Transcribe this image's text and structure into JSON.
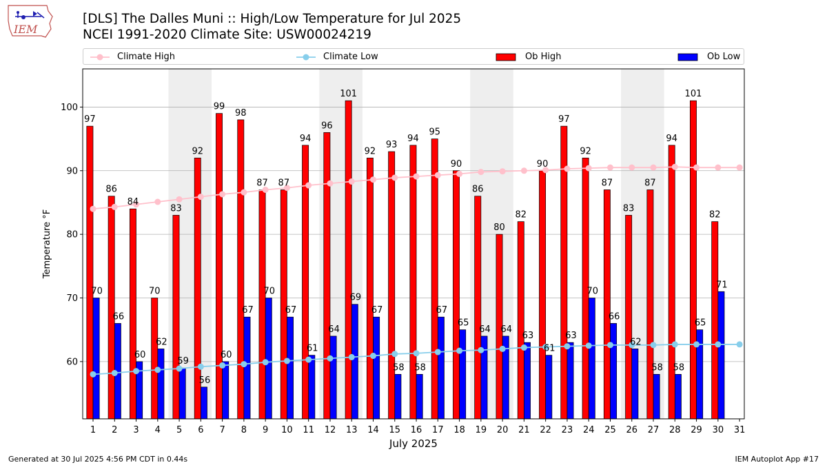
{
  "title_line1": "[DLS] The Dalles Muni :: High/Low Temperature for Jul 2025",
  "title_line2": "NCEI 1991-2020 Climate Site: USW00024219",
  "footer_left": "Generated at 30 Jul 2025 4:56 PM CDT in 0.44s",
  "footer_right": "IEM Autoplot App #17",
  "logo_text": "IEM",
  "colors": {
    "ob_high": "#ff0000",
    "ob_low": "#0000ff",
    "climate_high": "#ffc0cb",
    "climate_low": "#87ceeb",
    "weekend_shade": "#eeeeee",
    "grid": "#b0b0b0"
  },
  "chart_data": {
    "type": "bar",
    "xlabel": "July 2025",
    "ylabel": "Temperature °F",
    "ylim": [
      51,
      106
    ],
    "yticks": [
      60,
      70,
      80,
      90,
      100
    ],
    "grid": "horizontal",
    "legend_placement": "top",
    "categories": [
      "1",
      "2",
      "3",
      "4",
      "5",
      "6",
      "7",
      "8",
      "9",
      "10",
      "11",
      "12",
      "13",
      "14",
      "15",
      "16",
      "17",
      "18",
      "19",
      "20",
      "21",
      "22",
      "23",
      "24",
      "25",
      "26",
      "27",
      "28",
      "29",
      "30",
      "31"
    ],
    "weekend_shaded_days": [
      [
        5,
        6
      ],
      [
        12,
        13
      ],
      [
        19,
        20
      ],
      [
        26,
        27
      ]
    ],
    "series": [
      {
        "name": "Climate High",
        "kind": "line",
        "values": [
          84.0,
          84.3,
          84.7,
          85.1,
          85.5,
          85.9,
          86.3,
          86.6,
          87.0,
          87.3,
          87.7,
          88.0,
          88.3,
          88.6,
          88.9,
          89.1,
          89.3,
          89.5,
          89.8,
          89.9,
          90.0,
          90.1,
          90.3,
          90.4,
          90.5,
          90.5,
          90.5,
          90.6,
          90.5,
          90.5,
          90.5
        ]
      },
      {
        "name": "Climate Low",
        "kind": "line",
        "values": [
          58.0,
          58.2,
          58.5,
          58.7,
          58.9,
          59.2,
          59.4,
          59.6,
          59.9,
          60.1,
          60.3,
          60.5,
          60.7,
          60.9,
          61.2,
          61.3,
          61.5,
          61.7,
          61.8,
          62.0,
          62.2,
          62.3,
          62.4,
          62.5,
          62.6,
          62.6,
          62.6,
          62.7,
          62.7,
          62.7,
          62.7
        ]
      },
      {
        "name": "Ob High",
        "kind": "bar",
        "values": [
          97,
          86,
          84,
          70,
          83,
          92,
          99,
          98,
          87,
          87,
          94,
          96,
          101,
          92,
          93,
          94,
          95,
          90,
          86,
          80,
          82,
          90,
          97,
          92,
          87,
          83,
          87,
          94,
          101,
          82,
          null
        ]
      },
      {
        "name": "Ob Low",
        "kind": "bar",
        "values": [
          70,
          66,
          60,
          62,
          59,
          56,
          60,
          67,
          70,
          67,
          61,
          64,
          69,
          67,
          58,
          58,
          67,
          65,
          64,
          64,
          63,
          61,
          63,
          70,
          66,
          62,
          58,
          58,
          65,
          71,
          null
        ]
      }
    ]
  }
}
